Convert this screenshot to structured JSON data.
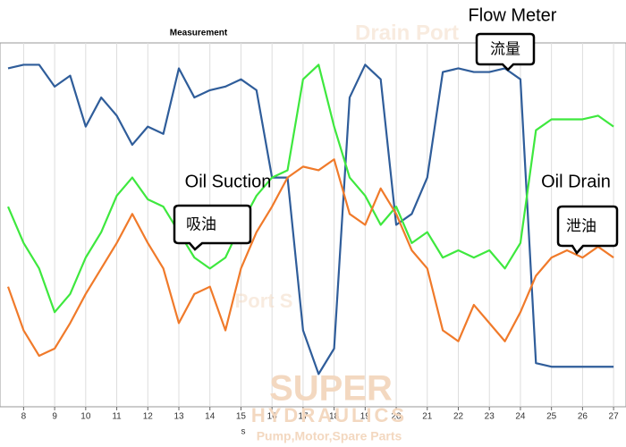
{
  "chart_data": {
    "type": "line",
    "title": "Measurement",
    "x_label": "s",
    "x": [
      7.5,
      8,
      8.5,
      9,
      9.5,
      10,
      10.5,
      11,
      11.5,
      12,
      12.5,
      13,
      13.5,
      14,
      14.5,
      15,
      15.5,
      16,
      16.5,
      17,
      17.5,
      18,
      18.5,
      19,
      19.5,
      20,
      20.5,
      21,
      21.5,
      22,
      22.5,
      23,
      23.5,
      24,
      24.5,
      25,
      25.5,
      26,
      26.5,
      27
    ],
    "series": [
      {
        "name": "Flow Meter",
        "color": "#2f5d9a",
        "values": [
          93,
          94,
          94,
          88,
          91,
          77,
          85,
          80,
          72,
          77,
          75,
          93,
          85,
          87,
          88,
          90,
          87,
          63,
          63,
          21,
          9,
          16,
          85,
          94,
          90,
          50,
          53,
          63,
          92,
          93,
          92,
          92,
          93,
          90,
          12,
          11,
          11,
          11,
          11,
          11
        ]
      },
      {
        "name": "Oil Suction",
        "color": "#3ee83e",
        "values": [
          55,
          45,
          38,
          26,
          31,
          41,
          48,
          58,
          63,
          57,
          55,
          48,
          41,
          38,
          41,
          50,
          58,
          63,
          65,
          90,
          94,
          77,
          63,
          58,
          50,
          55,
          45,
          48,
          41,
          43,
          41,
          43,
          38,
          45,
          76,
          79,
          79,
          79,
          80,
          77
        ]
      },
      {
        "name": "Oil Drain",
        "color": "#f07a2a",
        "values": [
          33,
          21,
          14,
          16,
          23,
          31,
          38,
          45,
          53,
          45,
          38,
          23,
          31,
          33,
          21,
          38,
          48,
          55,
          63,
          66,
          65,
          68,
          53,
          50,
          60,
          53,
          43,
          38,
          21,
          18,
          28,
          23,
          18,
          26,
          36,
          41,
          43,
          41,
          44,
          41
        ]
      }
    ],
    "callouts": [
      "流量",
      "吸油",
      "泄油"
    ],
    "xlim": [
      7.24,
      27.4
    ],
    "ylim": [
      0,
      100
    ],
    "xticks": [
      8,
      9,
      10,
      11,
      12,
      13,
      14,
      15,
      16,
      17,
      18,
      19,
      20,
      21,
      22,
      23,
      24,
      25,
      26,
      27
    ],
    "grid": true,
    "watermark": [
      "Drain Port",
      "Port S",
      "SUPER",
      "HYDRAULICS",
      "Pump,Motor,Spare Parts"
    ]
  }
}
